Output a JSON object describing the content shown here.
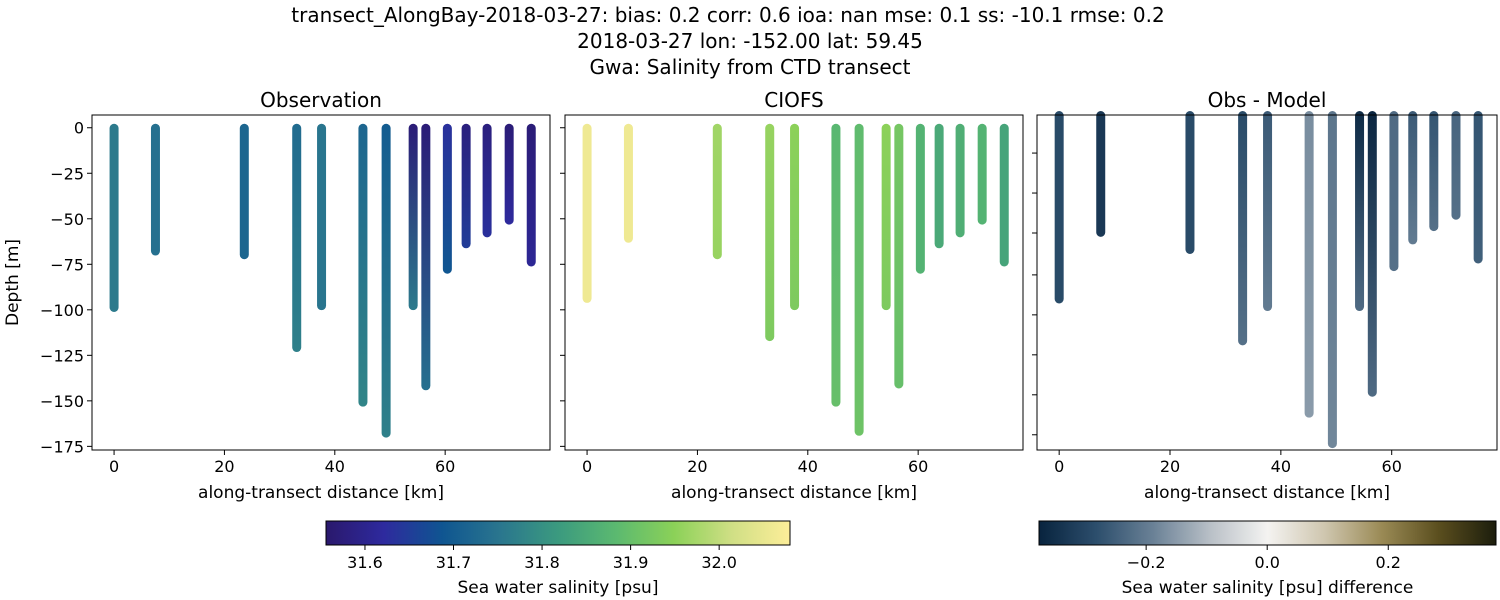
{
  "title_lines": [
    "transect_AlongBay-2018-03-27: bias: 0.2  corr: 0.6  ioa: nan  mse: 0.1  ss: -10.1  rmse: 0.2",
    "2018-03-27 lon: -152.00 lat: 59.45",
    "Gwa: Salinity from CTD transect"
  ],
  "chart_data": [
    {
      "type": "scatter",
      "title": "Observation",
      "xlabel": "along-transect distance [km]",
      "ylabel": "Depth [m]",
      "xlim": [
        -4,
        79
      ],
      "ylim": [
        -177,
        7
      ],
      "xticks": [
        0,
        20,
        40,
        60
      ],
      "yticks": [
        0,
        -25,
        -50,
        -75,
        -100,
        -125,
        -150,
        -175
      ],
      "show_ytick_labels": true,
      "colormap": "haline",
      "casts": [
        {
          "x": 0,
          "depth": -99,
          "value_top": 31.76,
          "value_bottom": 31.76
        },
        {
          "x": 7.5,
          "depth": -68,
          "value_top": 31.74,
          "value_bottom": 31.74
        },
        {
          "x": 23.6,
          "depth": -70,
          "value_top": 31.72,
          "value_bottom": 31.72
        },
        {
          "x": 33.1,
          "depth": -121,
          "value_top": 31.73,
          "value_bottom": 31.77
        },
        {
          "x": 37.6,
          "depth": -98,
          "value_top": 31.75,
          "value_bottom": 31.75
        },
        {
          "x": 45.1,
          "depth": -151,
          "value_top": 31.72,
          "value_bottom": 31.78
        },
        {
          "x": 49.3,
          "depth": -168,
          "value_top": 31.7,
          "value_bottom": 31.77
        },
        {
          "x": 54.2,
          "depth": -98,
          "value_top": 31.57,
          "value_bottom": 31.76
        },
        {
          "x": 56.5,
          "depth": -142,
          "value_top": 31.57,
          "value_bottom": 31.74
        },
        {
          "x": 60.4,
          "depth": -78,
          "value_top": 31.63,
          "value_bottom": 31.69
        },
        {
          "x": 63.8,
          "depth": -64,
          "value_top": 31.58,
          "value_bottom": 31.65
        },
        {
          "x": 67.6,
          "depth": -58,
          "value_top": 31.58,
          "value_bottom": 31.63
        },
        {
          "x": 71.6,
          "depth": -51,
          "value_top": 31.57,
          "value_bottom": 31.62
        },
        {
          "x": 75.6,
          "depth": -74,
          "value_top": 31.57,
          "value_bottom": 31.61
        }
      ]
    },
    {
      "type": "scatter",
      "title": "CIOFS",
      "xlabel": "along-transect distance [km]",
      "ylabel": "",
      "xlim": [
        -4,
        79
      ],
      "ylim": [
        -177,
        7
      ],
      "xticks": [
        0,
        20,
        40,
        60
      ],
      "yticks": [
        0,
        -25,
        -50,
        -75,
        -100,
        -125,
        -150,
        -175
      ],
      "show_ytick_labels": false,
      "colormap": "haline",
      "casts": [
        {
          "x": 0,
          "depth": -94,
          "value_top": 32.06,
          "value_bottom": 32.06
        },
        {
          "x": 7.5,
          "depth": -61,
          "value_top": 32.06,
          "value_bottom": 32.06
        },
        {
          "x": 23.6,
          "depth": -70,
          "value_top": 31.97,
          "value_bottom": 31.96
        },
        {
          "x": 33.1,
          "depth": -115,
          "value_top": 31.96,
          "value_bottom": 31.93
        },
        {
          "x": 37.6,
          "depth": -98,
          "value_top": 31.95,
          "value_bottom": 31.93
        },
        {
          "x": 45.1,
          "depth": -151,
          "value_top": 31.88,
          "value_bottom": 31.9
        },
        {
          "x": 49.3,
          "depth": -167,
          "value_top": 31.89,
          "value_bottom": 31.91
        },
        {
          "x": 54.2,
          "depth": -98,
          "value_top": 31.95,
          "value_bottom": 31.93
        },
        {
          "x": 56.5,
          "depth": -141,
          "value_top": 31.92,
          "value_bottom": 31.9
        },
        {
          "x": 60.4,
          "depth": -78,
          "value_top": 31.87,
          "value_bottom": 31.87
        },
        {
          "x": 63.8,
          "depth": -64,
          "value_top": 31.85,
          "value_bottom": 31.85
        },
        {
          "x": 67.6,
          "depth": -58,
          "value_top": 31.86,
          "value_bottom": 31.86
        },
        {
          "x": 71.6,
          "depth": -51,
          "value_top": 31.87,
          "value_bottom": 31.87
        },
        {
          "x": 75.6,
          "depth": -74,
          "value_top": 31.84,
          "value_bottom": 31.84
        }
      ]
    },
    {
      "type": "scatter",
      "title": "Obs - Model",
      "xlabel": "along-transect distance [km]",
      "ylabel": "",
      "xlim": [
        -4,
        79
      ],
      "ylim": [
        -176,
        0
      ],
      "xticks": [
        0,
        20,
        40,
        60
      ],
      "yticks": [
        -20,
        -41,
        -62,
        -84,
        -105,
        -126,
        -147,
        -168
      ],
      "show_ytick_labels": false,
      "colormap": "diff",
      "casts": [
        {
          "x": 0,
          "depth": -99,
          "value_top": -0.29,
          "value_bottom": -0.29
        },
        {
          "x": 7.5,
          "depth": -64,
          "value_top": -0.33,
          "value_bottom": -0.33
        },
        {
          "x": 23.6,
          "depth": -73,
          "value_top": -0.29,
          "value_bottom": -0.29
        },
        {
          "x": 33.1,
          "depth": -121,
          "value_top": -0.29,
          "value_bottom": -0.22
        },
        {
          "x": 37.6,
          "depth": -103,
          "value_top": -0.26,
          "value_bottom": -0.2
        },
        {
          "x": 45.1,
          "depth": -159,
          "value_top": -0.17,
          "value_bottom": -0.15
        },
        {
          "x": 49.3,
          "depth": -175,
          "value_top": -0.21,
          "value_bottom": -0.18
        },
        {
          "x": 54.2,
          "depth": -103,
          "value_top": -0.36,
          "value_bottom": -0.23
        },
        {
          "x": 56.5,
          "depth": -148,
          "value_top": -0.37,
          "value_bottom": -0.23
        },
        {
          "x": 60.4,
          "depth": -82,
          "value_top": -0.23,
          "value_bottom": -0.22
        },
        {
          "x": 63.8,
          "depth": -68,
          "value_top": -0.26,
          "value_bottom": -0.2
        },
        {
          "x": 67.6,
          "depth": -61,
          "value_top": -0.27,
          "value_bottom": -0.22
        },
        {
          "x": 71.6,
          "depth": -55,
          "value_top": -0.24,
          "value_bottom": -0.22
        },
        {
          "x": 75.6,
          "depth": -78,
          "value_top": -0.27,
          "value_bottom": -0.25
        }
      ]
    }
  ],
  "colorbars": [
    {
      "label": "Sea water salinity [psu]",
      "range": [
        31.556,
        32.08
      ],
      "ticks": [
        "31.6",
        "31.7",
        "31.8",
        "31.9",
        "32.0"
      ],
      "tick_values": [
        31.6,
        31.7,
        31.8,
        31.9,
        32.0
      ],
      "colormap": "haline"
    },
    {
      "label": "Sea water salinity [psu] difference",
      "range": [
        -0.377,
        0.378
      ],
      "ticks": [
        "−0.2",
        "0.0",
        "0.2"
      ],
      "tick_values": [
        -0.2,
        0.0,
        0.2
      ],
      "colormap": "diff"
    }
  ],
  "colormaps": {
    "haline": [
      "#2a186c",
      "#2e2a9e",
      "#0f5591",
      "#2a768e",
      "#3b9a7f",
      "#5bb970",
      "#8bd158",
      "#d0df85",
      "#fdee99"
    ],
    "diff": [
      "#08233e",
      "#2c4e6c",
      "#6a8196",
      "#b9c0c7",
      "#f4f3f1",
      "#cfc6af",
      "#9a8a55",
      "#5a4e1e",
      "#1c1d0c"
    ]
  }
}
